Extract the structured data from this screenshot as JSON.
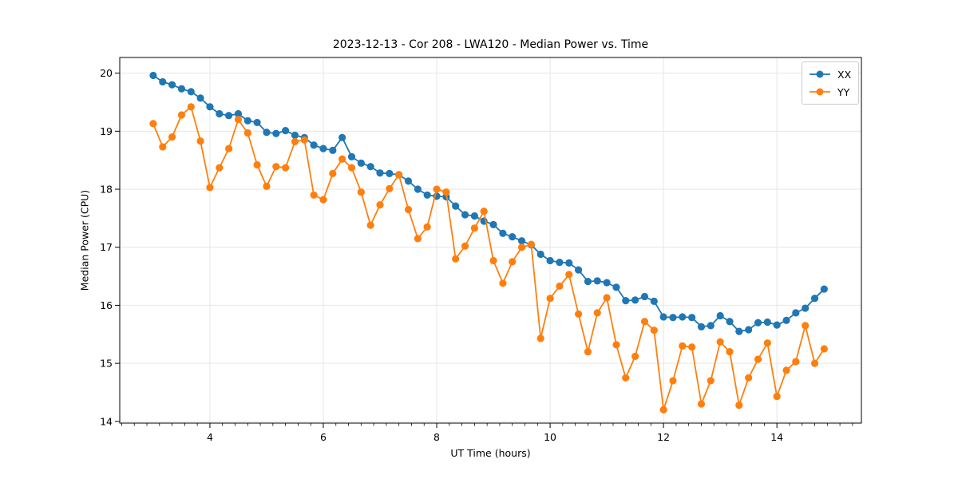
{
  "chart_data": {
    "type": "line",
    "title": "2023-12-13 - Cor 208 - LWA120 - Median Power vs. Time",
    "xlabel": "UT Time (hours)",
    "ylabel": "Median Power (CPU)",
    "xlim": [
      2.41,
      15.49
    ],
    "ylim": [
      13.97,
      20.27
    ],
    "x_ticks": [
      4,
      6,
      8,
      10,
      12,
      14
    ],
    "y_ticks": [
      14,
      15,
      16,
      17,
      18,
      19,
      20
    ],
    "x_minor_tick_step": 0.2222,
    "grid": "major-only",
    "grid_color": "#e6e6e6",
    "legend_position": "upper-right",
    "x": [
      3,
      3.167,
      3.333,
      3.5,
      3.667,
      3.833,
      4,
      4.167,
      4.333,
      4.5,
      4.667,
      4.833,
      5,
      5.167,
      5.333,
      5.5,
      5.667,
      5.833,
      6,
      6.167,
      6.333,
      6.5,
      6.667,
      6.833,
      7,
      7.167,
      7.333,
      7.5,
      7.667,
      7.833,
      8,
      8.167,
      8.333,
      8.5,
      8.667,
      8.833,
      9,
      9.167,
      9.333,
      9.5,
      9.667,
      9.833,
      10,
      10.167,
      10.333,
      10.5,
      10.667,
      10.833,
      11,
      11.167,
      11.333,
      11.5,
      11.667,
      11.833,
      12,
      12.167,
      12.333,
      12.5,
      12.667,
      12.833,
      13,
      13.167,
      13.333,
      13.5,
      13.667,
      13.833,
      14,
      14.167,
      14.333,
      14.5,
      14.667,
      14.833
    ],
    "series": [
      {
        "name": "XX",
        "color": "#1f77b4",
        "values": [
          19.96,
          19.85,
          19.8,
          19.73,
          19.68,
          19.57,
          19.42,
          19.3,
          19.27,
          19.3,
          19.18,
          19.15,
          18.98,
          18.96,
          19.01,
          18.93,
          18.89,
          18.76,
          18.7,
          18.67,
          18.89,
          18.56,
          18.45,
          18.39,
          18.28,
          18.27,
          18.25,
          18.14,
          18.0,
          17.9,
          17.88,
          17.87,
          17.71,
          17.56,
          17.54,
          17.45,
          17.39,
          17.24,
          17.18,
          17.11,
          17.04,
          16.88,
          16.77,
          16.74,
          16.73,
          16.61,
          16.41,
          16.42,
          16.39,
          16.31,
          16.08,
          16.09,
          16.15,
          16.07,
          15.8,
          15.79,
          15.8,
          15.79,
          15.63,
          15.65,
          15.82,
          15.72,
          15.55,
          15.58,
          15.7,
          15.71,
          15.66,
          15.74,
          15.87,
          15.95,
          16.12,
          16.28
        ]
      },
      {
        "name": "YY",
        "color": "#ff7f0e",
        "values": [
          19.13,
          18.73,
          18.9,
          19.28,
          19.42,
          18.83,
          18.03,
          18.37,
          18.7,
          19.2,
          18.97,
          18.42,
          18.05,
          18.39,
          18.37,
          18.82,
          18.85,
          17.9,
          17.82,
          18.27,
          18.52,
          18.37,
          17.95,
          17.38,
          17.73,
          18.01,
          18.25,
          17.65,
          17.15,
          17.35,
          18.0,
          17.95,
          16.8,
          17.02,
          17.33,
          17.62,
          16.77,
          16.38,
          16.75,
          17.0,
          17.05,
          15.43,
          16.12,
          16.33,
          16.53,
          15.85,
          15.2,
          15.87,
          16.13,
          15.32,
          14.75,
          15.12,
          15.72,
          15.57,
          14.2,
          14.7,
          15.3,
          15.28,
          14.3,
          14.7,
          15.37,
          15.2,
          14.28,
          14.75,
          15.07,
          15.35,
          14.43,
          14.88,
          15.03,
          15.65,
          15.0,
          15.25
        ]
      }
    ]
  }
}
